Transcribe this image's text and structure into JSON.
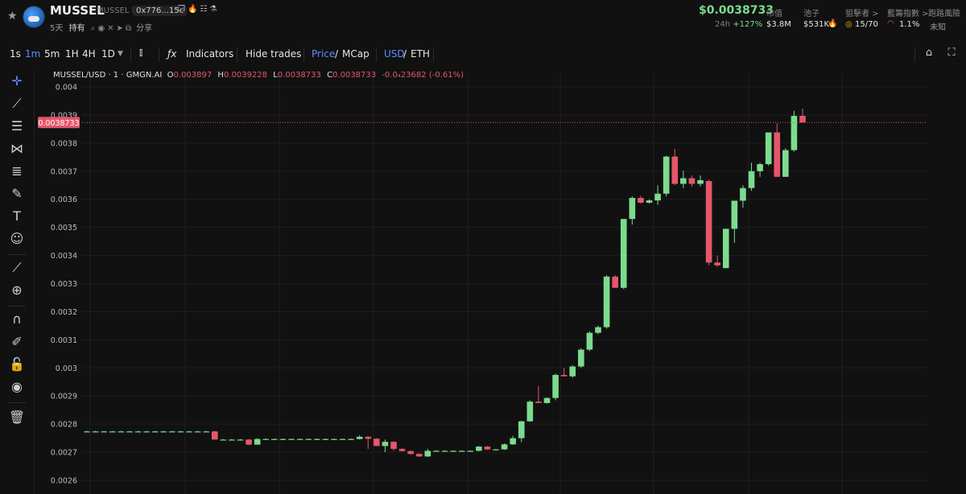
{
  "header": {
    "token_name": "MUSSEL",
    "token_sub": "MUSSEL b",
    "address": "0x776...15c",
    "age": "5天",
    "holding_label": "持有",
    "share_label": "分享",
    "price": "$0.0038733",
    "change_label": "24h",
    "change_value": "+127%",
    "stats": [
      {
        "label": "市值",
        "value": "$3.8M"
      },
      {
        "label": "池子",
        "value": "$531K"
      },
      {
        "label": "狙擊者 >",
        "value": "15/70"
      },
      {
        "label": "藍籌指數 >",
        "value": "1.1%"
      },
      {
        "label": "跑路風險",
        "value": "未知"
      }
    ]
  },
  "toolbar": {
    "intervals": [
      "1s",
      "1m",
      "5m",
      "1H",
      "4H",
      "1D"
    ],
    "active_interval": "1m",
    "indicators_label": "Indicators",
    "hide_trades_label": "Hide trades",
    "price_label": "Price",
    "mcap_label": "MCap",
    "usd_label": "USD",
    "eth_label": "ETH"
  },
  "legend": {
    "symbol": "MUSSEL/USD · 1 · GMGN.AI",
    "o_label": "O",
    "o": "0.003897",
    "h_label": "H",
    "h": "0.0039228",
    "l_label": "L",
    "l": "0.0038733",
    "c_label": "C",
    "c": "0.0038733",
    "change": "-0.0₄23682 (-0.61%)"
  },
  "chart_data": {
    "type": "candlestick",
    "ylim": [
      0.00258,
      0.00405
    ],
    "ticks": [
      "0.004",
      "0.0039",
      "0.0038",
      "0.0037",
      "0.0036",
      "0.0035",
      "0.0034",
      "0.0033",
      "0.0032",
      "0.0031",
      "0.003",
      "0.0029",
      "0.0028",
      "0.0027",
      "0.0026"
    ],
    "tick_values": [
      0.004,
      0.0039,
      0.0038,
      0.0037,
      0.0036,
      0.0035,
      0.0034,
      0.0033,
      0.0032,
      0.0031,
      0.003,
      0.0029,
      0.0028,
      0.0027,
      0.0026
    ],
    "last_price_label": "0.0038733",
    "last_price": 0.0038733,
    "colors": {
      "up": "#7cdb8e",
      "down": "#e5566b",
      "grid": "#1e1e1e",
      "text": "#bdbdbd"
    },
    "candles": [
      [
        0.002774,
        0.002776,
        0.002772,
        0.002774
      ],
      [
        0.002774,
        0.002776,
        0.002772,
        0.002774
      ],
      [
        0.002774,
        0.002776,
        0.002772,
        0.002774
      ],
      [
        0.002774,
        0.002776,
        0.002772,
        0.002774
      ],
      [
        0.002774,
        0.002776,
        0.002772,
        0.002774
      ],
      [
        0.002774,
        0.002776,
        0.002772,
        0.002774
      ],
      [
        0.002774,
        0.002776,
        0.002772,
        0.002774
      ],
      [
        0.002774,
        0.002776,
        0.002772,
        0.002774
      ],
      [
        0.002774,
        0.002776,
        0.002772,
        0.002774
      ],
      [
        0.002774,
        0.002776,
        0.002772,
        0.002774
      ],
      [
        0.002774,
        0.002776,
        0.002772,
        0.002774
      ],
      [
        0.002774,
        0.002776,
        0.002772,
        0.002774
      ],
      [
        0.002774,
        0.002776,
        0.002772,
        0.002774
      ],
      [
        0.002774,
        0.002776,
        0.002772,
        0.002774
      ],
      [
        0.002774,
        0.002776,
        0.002772,
        0.002774
      ],
      [
        0.002774,
        0.002776,
        0.002745,
        0.002745
      ],
      [
        0.002745,
        0.002747,
        0.002743,
        0.002745
      ],
      [
        0.002745,
        0.002747,
        0.002743,
        0.002745
      ],
      [
        0.002745,
        0.002747,
        0.002743,
        0.002745
      ],
      [
        0.002745,
        0.002747,
        0.002725,
        0.002727
      ],
      [
        0.002727,
        0.00275,
        0.002727,
        0.002747
      ],
      [
        0.002747,
        0.002749,
        0.002745,
        0.002747
      ],
      [
        0.002747,
        0.002749,
        0.002745,
        0.002747
      ],
      [
        0.002747,
        0.002749,
        0.002745,
        0.002747
      ],
      [
        0.002747,
        0.002749,
        0.002745,
        0.002747
      ],
      [
        0.002747,
        0.002749,
        0.002745,
        0.002747
      ],
      [
        0.002747,
        0.002749,
        0.002745,
        0.002747
      ],
      [
        0.002747,
        0.002749,
        0.002745,
        0.002747
      ],
      [
        0.002747,
        0.002749,
        0.002745,
        0.002747
      ],
      [
        0.002747,
        0.002749,
        0.002745,
        0.002747
      ],
      [
        0.002747,
        0.002749,
        0.002745,
        0.002747
      ],
      [
        0.002747,
        0.002749,
        0.002745,
        0.002747
      ],
      [
        0.002747,
        0.00276,
        0.002745,
        0.002755
      ],
      [
        0.002755,
        0.002757,
        0.002712,
        0.002748
      ],
      [
        0.002748,
        0.00275,
        0.002722,
        0.002722
      ],
      [
        0.002722,
        0.002745,
        0.0027,
        0.002737
      ],
      [
        0.002737,
        0.002739,
        0.002705,
        0.002712
      ],
      [
        0.002712,
        0.002714,
        0.002702,
        0.002704
      ],
      [
        0.002704,
        0.002706,
        0.002692,
        0.002694
      ],
      [
        0.002694,
        0.002696,
        0.002683,
        0.002685
      ],
      [
        0.002685,
        0.002712,
        0.002683,
        0.002705
      ],
      [
        0.002705,
        0.002707,
        0.002703,
        0.002705
      ],
      [
        0.002705,
        0.002707,
        0.002703,
        0.002705
      ],
      [
        0.002705,
        0.002707,
        0.002703,
        0.002705
      ],
      [
        0.002705,
        0.002707,
        0.002703,
        0.002705
      ],
      [
        0.002705,
        0.002707,
        0.002703,
        0.002705
      ],
      [
        0.002705,
        0.002722,
        0.002703,
        0.00272
      ],
      [
        0.00272,
        0.002722,
        0.002708,
        0.00271
      ],
      [
        0.00271,
        0.002712,
        0.002708,
        0.00271
      ],
      [
        0.00271,
        0.002732,
        0.002708,
        0.002728
      ],
      [
        0.002728,
        0.002758,
        0.002726,
        0.00275
      ],
      [
        0.00275,
        0.002812,
        0.002735,
        0.00281
      ],
      [
        0.00281,
        0.002885,
        0.002808,
        0.00288
      ],
      [
        0.00288,
        0.002935,
        0.002875,
        0.002875
      ],
      [
        0.002875,
        0.002895,
        0.002873,
        0.002893
      ],
      [
        0.002893,
        0.00298,
        0.002885,
        0.002975
      ],
      [
        0.002975,
        0.003,
        0.00297,
        0.00297
      ],
      [
        0.00297,
        0.00301,
        0.002965,
        0.003005
      ],
      [
        0.003005,
        0.00307,
        0.003,
        0.003065
      ],
      [
        0.003065,
        0.00313,
        0.00306,
        0.003125
      ],
      [
        0.003125,
        0.00315,
        0.00312,
        0.003145
      ],
      [
        0.003145,
        0.00333,
        0.00314,
        0.003325
      ],
      [
        0.003325,
        0.00333,
        0.003285,
        0.003285
      ],
      [
        0.003285,
        0.00353,
        0.00328,
        0.00353
      ],
      [
        0.00353,
        0.00361,
        0.00351,
        0.003605
      ],
      [
        0.003605,
        0.003612,
        0.003585,
        0.003588
      ],
      [
        0.003588,
        0.0036,
        0.003585,
        0.003596
      ],
      [
        0.003596,
        0.00365,
        0.00358,
        0.00362
      ],
      [
        0.00362,
        0.003755,
        0.00361,
        0.003752
      ],
      [
        0.003752,
        0.00378,
        0.00365,
        0.003655
      ],
      [
        0.003655,
        0.003702,
        0.00364,
        0.003675
      ],
      [
        0.003675,
        0.003685,
        0.003645,
        0.003655
      ],
      [
        0.003655,
        0.003685,
        0.003645,
        0.003668
      ],
      [
        0.003665,
        0.00367,
        0.003365,
        0.003375
      ],
      [
        0.003375,
        0.0034,
        0.00336,
        0.003365
      ],
      [
        0.003355,
        0.003495,
        0.003355,
        0.003495
      ],
      [
        0.003495,
        0.003595,
        0.003445,
        0.003595
      ],
      [
        0.003595,
        0.00365,
        0.00357,
        0.00364
      ],
      [
        0.00364,
        0.00373,
        0.00363,
        0.0037
      ],
      [
        0.0037,
        0.00373,
        0.00368,
        0.003725
      ],
      [
        0.003725,
        0.003835,
        0.00372,
        0.003838
      ],
      [
        0.003838,
        0.00387,
        0.00368,
        0.00368
      ],
      [
        0.00368,
        0.003782,
        0.00368,
        0.003775
      ],
      [
        0.003775,
        0.003915,
        0.00377,
        0.003897
      ],
      [
        0.003897,
        0.0039228,
        0.0038733,
        0.0038733
      ]
    ]
  }
}
